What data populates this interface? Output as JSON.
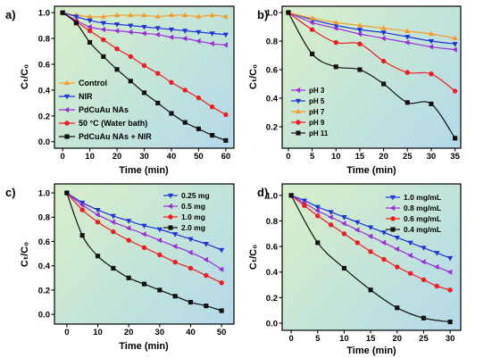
{
  "figure": {
    "plot_background_colors": [
      "#d5edca",
      "#c4e5d7",
      "#b6dae8"
    ],
    "axis_color": "#000000"
  },
  "chart_data": [
    {
      "panel_label": "a)",
      "type": "line",
      "xlabel": "Time (min)",
      "ylabel": "Cₜ/C₀",
      "xlim": [
        -3,
        63
      ],
      "ylim": [
        -0.05,
        1.05
      ],
      "xticks": [
        0,
        10,
        20,
        30,
        40,
        50,
        60
      ],
      "xtick_labels": [
        "0",
        "10",
        "20",
        "30",
        "40",
        "50",
        "60"
      ],
      "yticks": [
        0,
        0.2,
        0.4,
        0.6,
        0.8,
        1.0
      ],
      "ytick_labels": [
        "0.0",
        "0.2",
        "0.4",
        "0.6",
        "0.8",
        "1.0"
      ],
      "grid": false,
      "legend": "lower-left",
      "x": [
        0,
        5,
        10,
        15,
        20,
        25,
        30,
        35,
        40,
        45,
        50,
        55,
        60
      ],
      "series": [
        {
          "name": "Control",
          "color": "#f59b2b",
          "marker": "triangle-up",
          "values": [
            1.0,
            0.98,
            0.97,
            0.97,
            0.98,
            0.98,
            0.98,
            0.97,
            0.98,
            0.98,
            0.97,
            0.98,
            0.97
          ]
        },
        {
          "name": "NIR",
          "color": "#1c33d8",
          "marker": "triangle-down",
          "values": [
            1.0,
            0.97,
            0.94,
            0.92,
            0.91,
            0.9,
            0.89,
            0.88,
            0.87,
            0.86,
            0.85,
            0.84,
            0.83
          ]
        },
        {
          "name": "PdCuAu NAs",
          "color": "#9a2fd4",
          "marker": "triangle-left",
          "values": [
            1.0,
            0.94,
            0.89,
            0.87,
            0.86,
            0.85,
            0.84,
            0.83,
            0.81,
            0.8,
            0.78,
            0.76,
            0.75
          ]
        },
        {
          "name": "50 °C (Water bath)",
          "color": "#ee1c25",
          "marker": "circle",
          "values": [
            1.0,
            0.93,
            0.86,
            0.79,
            0.72,
            0.66,
            0.59,
            0.53,
            0.46,
            0.4,
            0.34,
            0.27,
            0.21
          ]
        },
        {
          "name": "PdCuAu NAs + NIR",
          "color": "#111111",
          "marker": "square",
          "values": [
            1.0,
            0.92,
            0.77,
            0.66,
            0.56,
            0.47,
            0.38,
            0.3,
            0.22,
            0.15,
            0.1,
            0.05,
            0.01
          ]
        }
      ]
    },
    {
      "panel_label": "b)",
      "type": "line",
      "xlabel": "Time (min)",
      "ylabel": "Cₜ/C₀",
      "xlim": [
        -1.3,
        36.2
      ],
      "ylim": [
        0.05,
        1.044
      ],
      "xticks": [
        0,
        5,
        10,
        15,
        20,
        25,
        30,
        35
      ],
      "xtick_labels": [
        "0",
        "5",
        "10",
        "15",
        "20",
        "25",
        "30",
        "35"
      ],
      "yticks": [
        0.2,
        0.4,
        0.6,
        0.8,
        1.0
      ],
      "ytick_labels": [
        "0.2",
        "0.4",
        "0.6",
        "0.8",
        "1.0"
      ],
      "grid": false,
      "legend": "lower-left",
      "x": [
        0,
        5,
        10,
        15,
        20,
        25,
        30,
        35
      ],
      "series": [
        {
          "name": "pH 3",
          "color": "#9a2fd4",
          "marker": "triangle-left",
          "values": [
            1.0,
            0.93,
            0.89,
            0.85,
            0.82,
            0.79,
            0.76,
            0.74
          ]
        },
        {
          "name": "pH 5",
          "color": "#1c33d8",
          "marker": "triangle-down",
          "values": [
            1.0,
            0.95,
            0.91,
            0.88,
            0.86,
            0.83,
            0.8,
            0.78
          ]
        },
        {
          "name": "pH 7",
          "color": "#f59b2b",
          "marker": "triangle-up",
          "values": [
            1.0,
            0.96,
            0.93,
            0.91,
            0.89,
            0.87,
            0.85,
            0.82
          ]
        },
        {
          "name": "pH 9",
          "color": "#ee1c25",
          "marker": "circle",
          "values": [
            1.0,
            0.88,
            0.79,
            0.78,
            0.66,
            0.58,
            0.57,
            0.45
          ]
        },
        {
          "name": "pH 11",
          "color": "#111111",
          "marker": "square",
          "values": [
            1.0,
            0.71,
            0.62,
            0.6,
            0.5,
            0.37,
            0.36,
            0.12
          ]
        }
      ]
    },
    {
      "panel_label": "c)",
      "type": "line",
      "xlabel": "Time (min)",
      "ylabel": "Cₜ/C₀",
      "xlim": [
        -4,
        54
      ],
      "ylim": [
        -0.08,
        1.074
      ],
      "xticks": [
        0,
        10,
        20,
        30,
        40,
        50
      ],
      "xtick_labels": [
        "0",
        "10",
        "20",
        "30",
        "40",
        "50"
      ],
      "yticks": [
        0,
        0.2,
        0.4,
        0.6,
        0.8,
        1.0
      ],
      "ytick_labels": [
        "0.0",
        "0.2",
        "0.4",
        "0.6",
        "0.8",
        "1.0"
      ],
      "grid": false,
      "legend": "upper-right",
      "x": [
        0,
        5,
        10,
        15,
        20,
        25,
        30,
        35,
        40,
        45,
        50
      ],
      "series": [
        {
          "name": "0.25 mg",
          "color": "#1c33d8",
          "marker": "triangle-down",
          "values": [
            1.0,
            0.92,
            0.86,
            0.81,
            0.77,
            0.73,
            0.7,
            0.66,
            0.62,
            0.58,
            0.53
          ]
        },
        {
          "name": "0.5 mg",
          "color": "#9a2fd4",
          "marker": "triangle-left",
          "values": [
            1.0,
            0.9,
            0.82,
            0.76,
            0.71,
            0.66,
            0.61,
            0.56,
            0.51,
            0.45,
            0.37
          ]
        },
        {
          "name": "1.0 mg",
          "color": "#ee1c25",
          "marker": "circle",
          "values": [
            1.0,
            0.86,
            0.76,
            0.68,
            0.61,
            0.55,
            0.49,
            0.43,
            0.38,
            0.32,
            0.26
          ]
        },
        {
          "name": "2.0 mg",
          "color": "#111111",
          "marker": "square",
          "values": [
            1.0,
            0.65,
            0.48,
            0.38,
            0.3,
            0.25,
            0.2,
            0.15,
            0.1,
            0.07,
            0.03
          ]
        }
      ]
    },
    {
      "panel_label": "d)",
      "type": "line",
      "xlabel": "Time (min)",
      "ylabel": "Cₜ/C₀",
      "xlim": [
        -1.7,
        32
      ],
      "ylim": [
        -0.056,
        1.09
      ],
      "xticks": [
        0,
        5,
        10,
        15,
        20,
        25,
        30
      ],
      "xtick_labels": [
        "0",
        "5",
        "10",
        "15",
        "20",
        "25",
        "30"
      ],
      "yticks": [
        0,
        0.2,
        0.4,
        0.6,
        0.8,
        1.0
      ],
      "ytick_labels": [
        "0.0",
        "0.2",
        "0.4",
        "0.6",
        "0.8",
        "1.0"
      ],
      "grid": false,
      "legend": "upper-right",
      "series": [
        {
          "name": "1.0 mg/mL",
          "color": "#1c33d8",
          "marker": "triangle-down",
          "x": [
            0,
            2.5,
            5,
            7.5,
            10,
            12.5,
            15,
            17.5,
            20,
            22.5,
            25,
            27.5,
            30
          ],
          "values": [
            1.0,
            0.96,
            0.91,
            0.87,
            0.83,
            0.79,
            0.75,
            0.71,
            0.67,
            0.63,
            0.59,
            0.55,
            0.51
          ]
        },
        {
          "name": "0.8 mg/mL",
          "color": "#9a2fd4",
          "marker": "triangle-left",
          "x": [
            0,
            2.5,
            5,
            7.5,
            10,
            12.5,
            15,
            17.5,
            20,
            22.5,
            25,
            27.5,
            30
          ],
          "values": [
            1.0,
            0.94,
            0.88,
            0.83,
            0.78,
            0.73,
            0.68,
            0.63,
            0.58,
            0.53,
            0.48,
            0.44,
            0.4
          ]
        },
        {
          "name": "0.6 mg/mL",
          "color": "#ee1c25",
          "marker": "circle",
          "x": [
            0,
            2.5,
            5,
            7.5,
            10,
            12.5,
            15,
            17.5,
            20,
            22.5,
            25,
            27.5,
            30
          ],
          "values": [
            1.0,
            0.92,
            0.84,
            0.77,
            0.7,
            0.63,
            0.56,
            0.5,
            0.44,
            0.39,
            0.34,
            0.29,
            0.26
          ]
        },
        {
          "name": "0.4 mg/mL",
          "color": "#111111",
          "marker": "square",
          "x": [
            0,
            5,
            10,
            15,
            20,
            25,
            30
          ],
          "values": [
            1.0,
            0.63,
            0.43,
            0.26,
            0.12,
            0.04,
            0.01
          ]
        }
      ]
    }
  ]
}
